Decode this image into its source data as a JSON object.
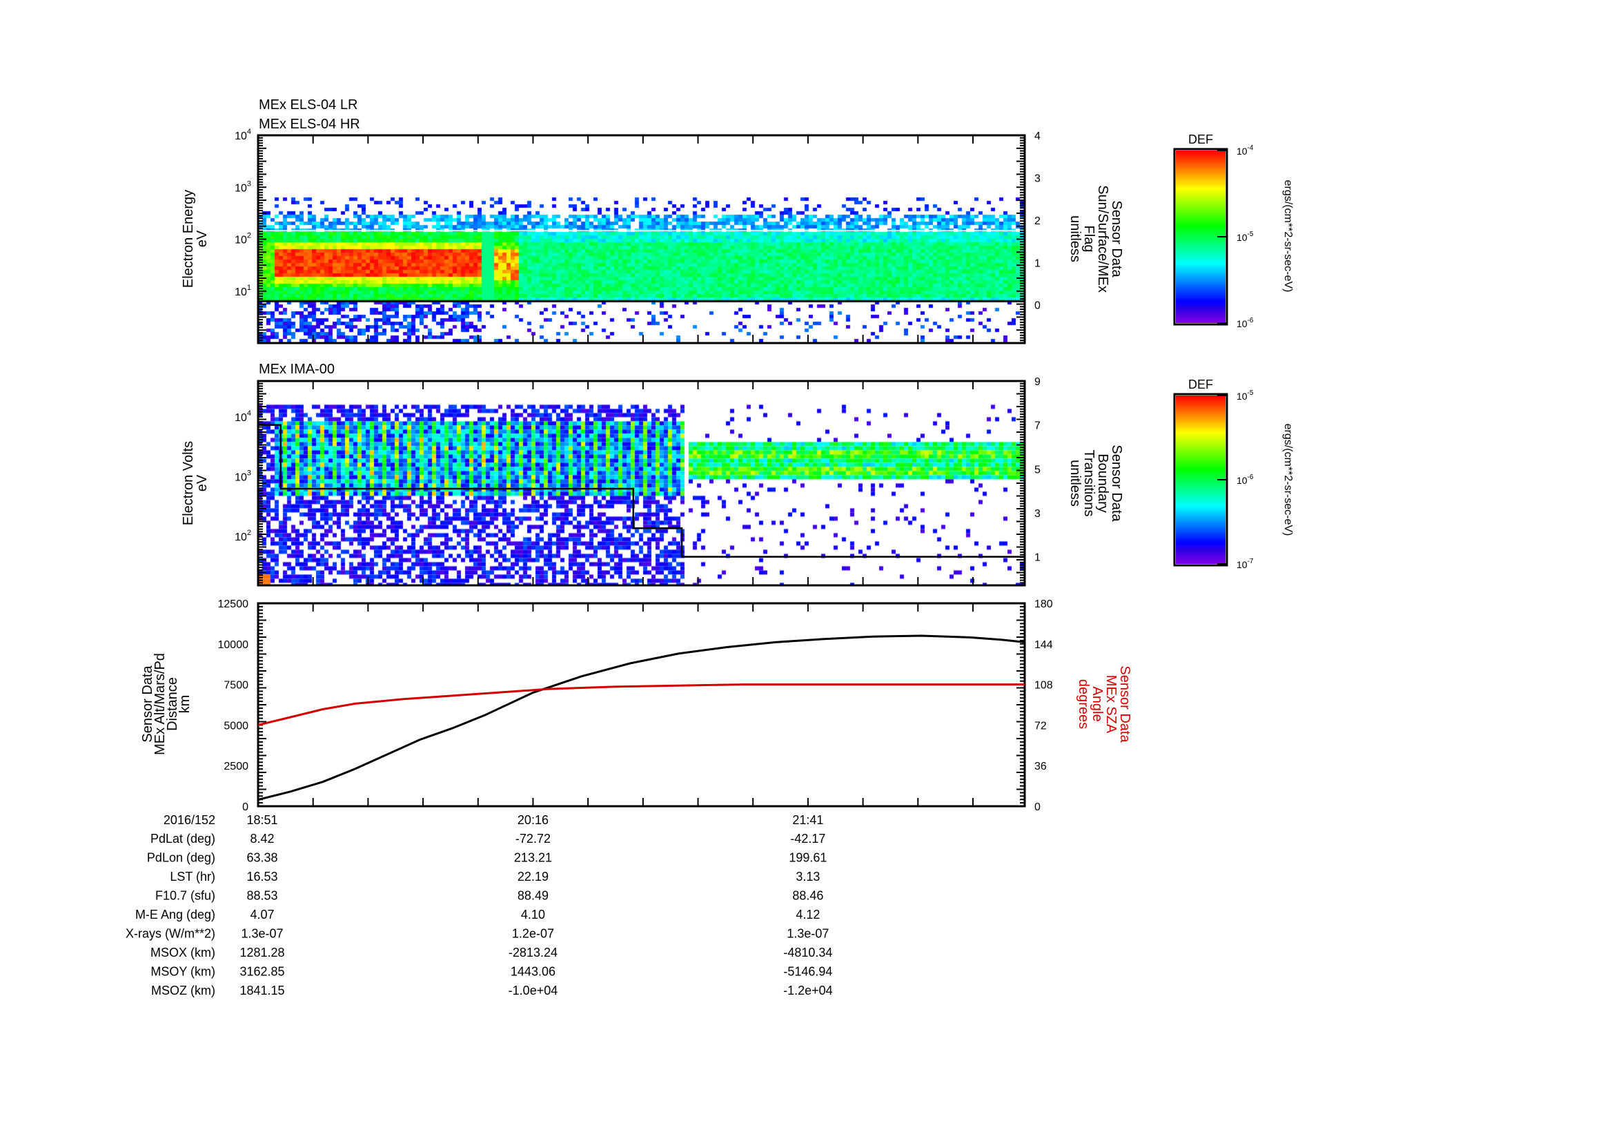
{
  "chart_data": [
    {
      "type": "heatmap",
      "panel": "els",
      "titles": [
        "MEx ELS-04 LR",
        "MEx ELS-04 HR"
      ],
      "ylabel": [
        "Electron Energy",
        "eV"
      ],
      "yscale": "log",
      "ylim": [
        1,
        10000
      ],
      "yticks": [
        {
          "base": "10",
          "exp": "1",
          "value": 10
        },
        {
          "base": "10",
          "exp": "2",
          "value": 100
        },
        {
          "base": "10",
          "exp": "3",
          "value": 1000
        },
        {
          "base": "10",
          "exp": "4",
          "value": 10000
        }
      ],
      "y2label": [
        "Sensor Data",
        "Sun/Surface/MEx",
        "Flag",
        "unitless"
      ],
      "y2lim": [
        -0.9,
        4
      ],
      "y2ticks": [
        "0",
        "1",
        "2",
        "3",
        "4"
      ],
      "colorbar": {
        "title": "DEF",
        "units": "ergs/(cm**2-sr-sec-eV)",
        "ticks": [
          {
            "base": "10",
            "exp": "-4"
          },
          {
            "base": "10",
            "exp": "-5"
          },
          {
            "base": "10",
            "exp": "-6"
          }
        ],
        "range": [
          1e-06,
          0.0001
        ]
      },
      "features": {
        "intense_band_eV": [
          20,
          70
        ],
        "intense_until_min": 75,
        "lower_cutoff_eV": 6.5,
        "flag_line_value": 0
      }
    },
    {
      "type": "heatmap",
      "panel": "ima",
      "titles": [
        "MEx IMA-00"
      ],
      "ylabel": [
        "Electron Volts",
        "eV"
      ],
      "yscale": "log",
      "ylim": [
        15,
        40000
      ],
      "yticks": [
        {
          "base": "10",
          "exp": "2",
          "value": 100
        },
        {
          "base": "10",
          "exp": "3",
          "value": 1000
        },
        {
          "base": "10",
          "exp": "4",
          "value": 10000
        }
      ],
      "y2label": [
        "Sensor Data",
        "Boundary",
        "Transitions",
        "unitless"
      ],
      "y2lim": [
        -0.3,
        9
      ],
      "y2ticks": [
        "1",
        "3",
        "5",
        "7",
        "9"
      ],
      "colorbar": {
        "title": "DEF",
        "units": "ergs/(cm**2-sr-sec-eV)",
        "ticks": [
          {
            "base": "10",
            "exp": "-5"
          },
          {
            "base": "10",
            "exp": "-6"
          },
          {
            "base": "10",
            "exp": "-7"
          }
        ],
        "range": [
          1e-07,
          1e-05
        ]
      },
      "boundary_steps": {
        "t_min": [
          0,
          7,
          116,
          131,
          237
        ],
        "value": [
          7,
          4.1,
          2.3,
          1,
          1
        ]
      }
    },
    {
      "type": "line",
      "panel": "orbit",
      "ylabel": [
        "Sensor Data",
        "MEx Alt/Mars/Pd",
        "Distance",
        "km"
      ],
      "ylim": [
        0,
        12500
      ],
      "yticks": [
        "0",
        "2500",
        "5000",
        "7500",
        "10000",
        "12500"
      ],
      "y2label": [
        "Sensor Data",
        "MEx SZA",
        "Angle",
        "degrees"
      ],
      "y2lim": [
        0,
        180
      ],
      "y2ticks": [
        "0",
        "36",
        "72",
        "108",
        "144",
        "180"
      ],
      "series": [
        {
          "name": "MEx Alt",
          "color": "#000000",
          "axis": "left",
          "t_min": [
            0,
            10,
            20,
            30,
            40,
            50,
            60,
            70,
            85,
            100,
            115,
            130,
            145,
            160,
            175,
            190,
            205,
            220,
            230,
            237
          ],
          "values": [
            400,
            900,
            1500,
            2300,
            3200,
            4100,
            4800,
            5600,
            7000,
            8000,
            8800,
            9400,
            9800,
            10100,
            10300,
            10450,
            10500,
            10400,
            10250,
            10100
          ]
        },
        {
          "name": "MEx SZA",
          "color": "#d40000",
          "axis": "right",
          "t_min": [
            0,
            10,
            20,
            30,
            45,
            60,
            75,
            90,
            110,
            150,
            237
          ],
          "values": [
            72,
            79,
            86,
            91,
            95,
            98,
            101,
            104,
            106,
            108,
            108
          ]
        }
      ]
    }
  ],
  "time_axis": {
    "start": "18:51",
    "span_min": 237,
    "labels": [
      "18:51",
      "20:16",
      "21:41"
    ],
    "label_min": [
      0,
      85,
      170
    ]
  },
  "ephemeris": {
    "header": "2016/152",
    "rows": [
      {
        "label": "PdLat (deg)",
        "values": [
          "8.42",
          "-72.72",
          "-42.17"
        ]
      },
      {
        "label": "PdLon (deg)",
        "values": [
          "63.38",
          "213.21",
          "199.61"
        ]
      },
      {
        "label": "LST (hr)",
        "values": [
          "16.53",
          "22.19",
          "3.13"
        ]
      },
      {
        "label": "F10.7 (sfu)",
        "values": [
          "88.53",
          "88.49",
          "88.46"
        ]
      },
      {
        "label": "M-E Ang (deg)",
        "values": [
          "4.07",
          "4.10",
          "4.12"
        ]
      },
      {
        "label": "X-rays (W/m**2)",
        "values": [
          "1.3e-07",
          "1.2e-07",
          "1.3e-07"
        ]
      },
      {
        "label": "MSOX (km)",
        "values": [
          "1281.28",
          "-2813.24",
          "-4810.34"
        ]
      },
      {
        "label": "MSOY (km)",
        "values": [
          "3162.85",
          "1443.06",
          "-5146.94"
        ]
      },
      {
        "label": "MSOZ (km)",
        "values": [
          "1841.15",
          "-1.0e+04",
          "-1.2e+04"
        ]
      }
    ]
  },
  "colors": {
    "axis": "#000000",
    "sza": "#d40000"
  }
}
